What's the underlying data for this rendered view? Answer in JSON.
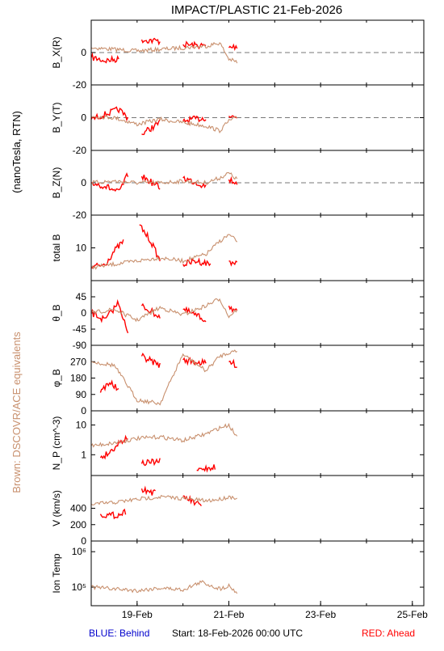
{
  "title": "IMPACT/PLASTIC   21-Feb-2026",
  "left_label_units": "(nanoTesla, RTN)",
  "left_label_brown": "Brown: DSCOVR/ACE equivalents",
  "footer": {
    "blue": "BLUE: Behind",
    "start": "Start: 18-Feb-2026 00:00 UTC",
    "red": "RED: Ahead"
  },
  "x_axis": {
    "ticks": [
      "19-Feb",
      "21-Feb",
      "23-Feb",
      "25-Feb"
    ],
    "tick_day": [
      1,
      3,
      5,
      7
    ],
    "range_days": [
      0,
      7.25
    ],
    "data_end_day": 3.18
  },
  "colors": {
    "ahead": "#ff0000",
    "dscovr": "#c8906e",
    "axis": "#000000",
    "blue_text": "#0000cc",
    "red_text": "#ff0000",
    "brown_text": "#c8906e"
  },
  "chart_data": [
    {
      "type": "line",
      "ylabel": "B_X(R)",
      "ylim": [
        -20,
        20
      ],
      "ticks": [
        -20,
        0
      ],
      "zero_line": true,
      "series": [
        {
          "name": "Ahead",
          "values": [
            [
              0,
              -3
            ],
            [
              0.3,
              -5
            ],
            [
              0.6,
              -4
            ],
            [
              1.0,
              null
            ],
            [
              1.1,
              8
            ],
            [
              1.5,
              7
            ],
            [
              1.7,
              null
            ],
            [
              2.0,
              5
            ],
            [
              2.5,
              4
            ],
            [
              2.7,
              null
            ],
            [
              3.0,
              3
            ],
            [
              3.18,
              4
            ]
          ]
        },
        {
          "name": "DSCOVR/ACE",
          "values": [
            [
              0,
              3
            ],
            [
              0.5,
              2
            ],
            [
              1.0,
              1
            ],
            [
              1.5,
              2
            ],
            [
              2.0,
              3
            ],
            [
              2.5,
              4
            ],
            [
              2.8,
              6
            ],
            [
              3.0,
              -4
            ],
            [
              3.18,
              -6
            ]
          ]
        }
      ]
    },
    {
      "type": "line",
      "ylabel": "B_Y(T)",
      "ylim": [
        -20,
        20
      ],
      "ticks": [
        -20,
        0
      ],
      "zero_line": true,
      "series": [
        {
          "name": "Ahead",
          "values": [
            [
              0,
              -1
            ],
            [
              0.3,
              2
            ],
            [
              0.6,
              5
            ],
            [
              0.8,
              0
            ],
            [
              1.0,
              null
            ],
            [
              1.1,
              -10
            ],
            [
              1.5,
              -3
            ],
            [
              1.7,
              null
            ],
            [
              2.0,
              -2
            ],
            [
              2.5,
              0
            ],
            [
              2.7,
              null
            ],
            [
              3.0,
              1
            ],
            [
              3.18,
              0
            ]
          ]
        },
        {
          "name": "DSCOVR/ACE",
          "values": [
            [
              0,
              1
            ],
            [
              0.5,
              0
            ],
            [
              1.0,
              -4
            ],
            [
              1.5,
              -1
            ],
            [
              2.0,
              -3
            ],
            [
              2.5,
              -5
            ],
            [
              2.8,
              -8
            ],
            [
              3.0,
              -2
            ],
            [
              3.18,
              0
            ]
          ]
        }
      ]
    },
    {
      "type": "line",
      "ylabel": "B_Z(N)",
      "ylim": [
        -20,
        20
      ],
      "ticks": [
        -20,
        0
      ],
      "zero_line": true,
      "series": [
        {
          "name": "Ahead",
          "values": [
            [
              0,
              0
            ],
            [
              0.3,
              -2
            ],
            [
              0.6,
              -6
            ],
            [
              0.8,
              5
            ],
            [
              1.0,
              null
            ],
            [
              1.1,
              4
            ],
            [
              1.5,
              -3
            ],
            [
              1.7,
              null
            ],
            [
              2.0,
              3
            ],
            [
              2.5,
              -2
            ],
            [
              2.7,
              null
            ],
            [
              3.0,
              2
            ],
            [
              3.18,
              0
            ]
          ]
        },
        {
          "name": "DSCOVR/ACE",
          "values": [
            [
              0,
              0
            ],
            [
              0.5,
              1
            ],
            [
              1.0,
              0
            ],
            [
              1.5,
              0
            ],
            [
              2.0,
              1
            ],
            [
              2.5,
              0
            ],
            [
              2.8,
              3
            ],
            [
              3.0,
              6
            ],
            [
              3.18,
              2
            ]
          ]
        }
      ]
    },
    {
      "type": "line",
      "ylabel": "total B",
      "ylim": [
        0,
        20
      ],
      "ticks": [
        10
      ],
      "zero_line": false,
      "series": [
        {
          "name": "Ahead",
          "values": [
            [
              0,
              4
            ],
            [
              0.3,
              5
            ],
            [
              0.5,
              9
            ],
            [
              0.7,
              12
            ],
            [
              0.8,
              null
            ],
            [
              1.05,
              17
            ],
            [
              1.3,
              12
            ],
            [
              1.5,
              6
            ],
            [
              1.7,
              null
            ],
            [
              2.0,
              5
            ],
            [
              2.3,
              6
            ],
            [
              2.6,
              5
            ],
            [
              2.7,
              null
            ],
            [
              3.0,
              6
            ],
            [
              3.18,
              5
            ]
          ]
        },
        {
          "name": "DSCOVR/ACE",
          "values": [
            [
              0,
              4
            ],
            [
              0.5,
              5
            ],
            [
              1.0,
              6
            ],
            [
              1.5,
              7
            ],
            [
              2.0,
              6
            ],
            [
              2.5,
              8
            ],
            [
              2.8,
              12
            ],
            [
              3.0,
              14
            ],
            [
              3.18,
              12
            ]
          ]
        }
      ]
    },
    {
      "type": "line",
      "ylabel": "θ_B",
      "ylim": [
        -90,
        90
      ],
      "ticks": [
        -90,
        -45,
        0,
        45
      ],
      "zero_line": false,
      "series": [
        {
          "name": "Ahead",
          "values": [
            [
              0,
              0
            ],
            [
              0.3,
              -20
            ],
            [
              0.6,
              30
            ],
            [
              0.8,
              -60
            ],
            [
              1.0,
              null
            ],
            [
              1.1,
              20
            ],
            [
              1.5,
              -10
            ],
            [
              1.7,
              null
            ],
            [
              2.0,
              10
            ],
            [
              2.5,
              -20
            ],
            [
              2.7,
              null
            ],
            [
              3.0,
              20
            ],
            [
              3.18,
              0
            ]
          ]
        },
        {
          "name": "DSCOVR/ACE",
          "values": [
            [
              0,
              0
            ],
            [
              0.5,
              10
            ],
            [
              1.0,
              -20
            ],
            [
              1.5,
              15
            ],
            [
              2.0,
              -5
            ],
            [
              2.5,
              20
            ],
            [
              2.8,
              40
            ],
            [
              3.0,
              -10
            ],
            [
              3.18,
              10
            ]
          ]
        }
      ]
    },
    {
      "type": "line",
      "ylabel": "φ_B",
      "ylim": [
        0,
        360
      ],
      "ticks": [
        0,
        90,
        180,
        270
      ],
      "zero_line": false,
      "series": [
        {
          "name": "Ahead",
          "values": [
            [
              0.2,
              100
            ],
            [
              0.4,
              160
            ],
            [
              0.6,
              110
            ],
            [
              0.8,
              null
            ],
            [
              1.1,
              300
            ],
            [
              1.5,
              250
            ],
            [
              1.7,
              null
            ],
            [
              2.0,
              280
            ],
            [
              2.5,
              260
            ],
            [
              2.7,
              null
            ],
            [
              3.0,
              270
            ],
            [
              3.18,
              250
            ]
          ]
        },
        {
          "name": "DSCOVR/ACE",
          "values": [
            [
              0,
              270
            ],
            [
              0.5,
              250
            ],
            [
              1.0,
              60
            ],
            [
              1.5,
              40
            ],
            [
              2.0,
              310
            ],
            [
              2.5,
              220
            ],
            [
              2.8,
              300
            ],
            [
              3.0,
              320
            ],
            [
              3.18,
              330
            ]
          ]
        }
      ]
    },
    {
      "type": "line",
      "ylabel": "N_P (cm^-3)",
      "ylog": true,
      "ylim": [
        0.2,
        30
      ],
      "ticks": [
        1,
        10
      ],
      "tick_labels": [
        "1",
        "10"
      ],
      "zero_line": false,
      "series": [
        {
          "name": "Ahead",
          "values": [
            [
              0.2,
              0.8
            ],
            [
              0.4,
              1.2
            ],
            [
              0.6,
              2.5
            ],
            [
              0.8,
              4
            ],
            [
              0.8,
              null
            ],
            [
              1.1,
              0.5
            ],
            [
              1.5,
              0.6
            ],
            [
              1.7,
              null
            ],
            [
              2.3,
              0.3
            ],
            [
              2.7,
              0.4
            ]
          ]
        },
        {
          "name": "DSCOVR/ACE",
          "values": [
            [
              0,
              2
            ],
            [
              0.5,
              2.5
            ],
            [
              1.0,
              3.5
            ],
            [
              1.5,
              4
            ],
            [
              2.0,
              3
            ],
            [
              2.5,
              5
            ],
            [
              2.8,
              8
            ],
            [
              3.0,
              10
            ],
            [
              3.18,
              4
            ]
          ]
        }
      ]
    },
    {
      "type": "line",
      "ylabel": "V (km/s)",
      "ylim": [
        0,
        800
      ],
      "ticks": [
        0,
        200,
        400
      ],
      "zero_line": false,
      "series": [
        {
          "name": "Ahead",
          "values": [
            [
              0.2,
              330
            ],
            [
              0.4,
              310
            ],
            [
              0.6,
              320
            ],
            [
              0.75,
              360
            ],
            [
              0.8,
              null
            ],
            [
              1.1,
              640
            ],
            [
              1.4,
              580
            ],
            [
              1.7,
              null
            ],
            [
              2.0,
              550
            ],
            [
              2.4,
              420
            ],
            [
              2.7,
              null
            ]
          ]
        },
        {
          "name": "DSCOVR/ACE",
          "values": [
            [
              0,
              450
            ],
            [
              0.5,
              470
            ],
            [
              1.0,
              510
            ],
            [
              1.5,
              540
            ],
            [
              2.0,
              520
            ],
            [
              2.5,
              490
            ],
            [
              2.8,
              510
            ],
            [
              3.0,
              540
            ],
            [
              3.18,
              530
            ]
          ]
        }
      ]
    },
    {
      "type": "line",
      "ylabel": "Ion Temp",
      "ylog": true,
      "ylim": [
        30000,
        2000000
      ],
      "ticks": [
        100000,
        1000000
      ],
      "tick_labels": [
        "10⁵",
        "10⁶"
      ],
      "zero_line": false,
      "series": [
        {
          "name": "DSCOVR/ACE",
          "values": [
            [
              0,
              100000
            ],
            [
              0.5,
              90000
            ],
            [
              1.0,
              80000
            ],
            [
              1.5,
              95000
            ],
            [
              2.0,
              85000
            ],
            [
              2.4,
              140000
            ],
            [
              2.8,
              90000
            ],
            [
              3.0,
              110000
            ],
            [
              3.18,
              70000
            ]
          ]
        }
      ]
    }
  ]
}
